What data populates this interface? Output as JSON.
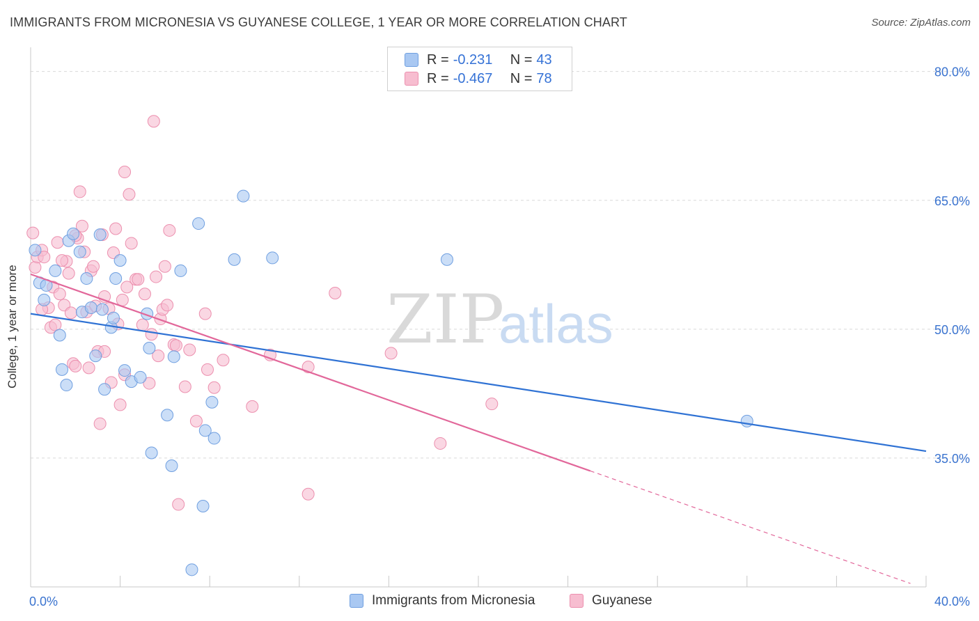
{
  "title": "IMMIGRANTS FROM MICRONESIA VS GUYANESE COLLEGE, 1 YEAR OR MORE CORRELATION CHART",
  "source": "Source: ZipAtlas.com",
  "watermark": {
    "zip": "ZIP",
    "atlas": "atlas"
  },
  "legend": [
    {
      "r_label": "R =",
      "r_value": "-0.231",
      "n_label": "N =",
      "n_value": "43"
    },
    {
      "r_label": "R =",
      "r_value": "-0.467",
      "n_label": "N =",
      "n_value": "78"
    }
  ],
  "colors": {
    "blue_fill": "#a9c8f2",
    "blue_stroke": "#6f9fe0",
    "blue_line": "#2f72d4",
    "pink_fill": "#f7bdd0",
    "pink_stroke": "#ec8fae",
    "pink_line": "#e2679a",
    "tick_text": "#3a73cf",
    "grid": "#d9d9d9"
  },
  "chart_data": {
    "type": "scatter",
    "title": "IMMIGRANTS FROM MICRONESIA VS GUYANESE COLLEGE, 1 YEAR OR MORE CORRELATION CHART",
    "xlabel": "",
    "ylabel": "College, 1 year or more",
    "xlim": [
      0,
      40
    ],
    "ylim": [
      20,
      82
    ],
    "x_tick_labels": [
      "0.0%",
      "40.0%"
    ],
    "y_ticks": [
      35,
      50,
      65,
      80
    ],
    "y_tick_labels": [
      "35.0%",
      "50.0%",
      "65.0%",
      "80.0%"
    ],
    "series": [
      {
        "name": "Immigrants from Micronesia",
        "color": "blue",
        "trend": {
          "x0": 0,
          "y0": 51.8,
          "x1": 40,
          "y1": 35.8,
          "dashed_from": null
        },
        "points": [
          [
            0.2,
            59.2
          ],
          [
            0.4,
            55.4
          ],
          [
            0.6,
            53.4
          ],
          [
            0.7,
            55.1
          ],
          [
            1.1,
            56.8
          ],
          [
            1.3,
            49.3
          ],
          [
            1.4,
            45.3
          ],
          [
            1.6,
            43.5
          ],
          [
            1.7,
            60.3
          ],
          [
            1.9,
            61.1
          ],
          [
            2.2,
            59.0
          ],
          [
            2.3,
            52.0
          ],
          [
            2.5,
            55.9
          ],
          [
            2.7,
            52.5
          ],
          [
            2.9,
            46.9
          ],
          [
            3.1,
            61.0
          ],
          [
            3.3,
            43.0
          ],
          [
            3.6,
            50.2
          ],
          [
            3.7,
            51.3
          ],
          [
            3.8,
            55.9
          ],
          [
            4.0,
            58.0
          ],
          [
            4.2,
            45.2
          ],
          [
            4.5,
            43.9
          ],
          [
            4.9,
            44.4
          ],
          [
            5.3,
            47.8
          ],
          [
            5.4,
            35.6
          ],
          [
            6.3,
            34.1
          ],
          [
            6.4,
            46.8
          ],
          [
            6.1,
            40.0
          ],
          [
            6.7,
            56.8
          ],
          [
            7.5,
            62.3
          ],
          [
            7.7,
            29.4
          ],
          [
            7.8,
            38.2
          ],
          [
            8.2,
            37.3
          ],
          [
            8.1,
            41.5
          ],
          [
            9.1,
            58.1
          ],
          [
            9.5,
            65.5
          ],
          [
            10.8,
            58.3
          ],
          [
            18.6,
            58.1
          ],
          [
            32.0,
            39.3
          ],
          [
            7.2,
            22.0
          ],
          [
            5.2,
            51.8
          ],
          [
            3.2,
            52.3
          ]
        ]
      },
      {
        "name": "Guyanese",
        "color": "pink",
        "trend": {
          "x0": 0,
          "y0": 56.4,
          "x1": 39.3,
          "y1": 20.4,
          "dashed_from": 25.0
        },
        "points": [
          [
            0.1,
            61.2
          ],
          [
            0.2,
            57.2
          ],
          [
            0.3,
            58.4
          ],
          [
            0.5,
            59.2
          ],
          [
            0.6,
            58.4
          ],
          [
            0.8,
            52.5
          ],
          [
            0.9,
            50.2
          ],
          [
            1.0,
            54.9
          ],
          [
            1.1,
            50.5
          ],
          [
            1.2,
            60.1
          ],
          [
            1.3,
            54.1
          ],
          [
            1.5,
            52.8
          ],
          [
            1.6,
            57.9
          ],
          [
            1.7,
            56.5
          ],
          [
            1.8,
            51.9
          ],
          [
            1.9,
            46.0
          ],
          [
            2.0,
            45.7
          ],
          [
            2.1,
            60.6
          ],
          [
            2.2,
            66.0
          ],
          [
            2.3,
            62.0
          ],
          [
            2.4,
            59.0
          ],
          [
            2.5,
            52.0
          ],
          [
            2.6,
            45.5
          ],
          [
            2.7,
            56.8
          ],
          [
            2.8,
            57.3
          ],
          [
            2.9,
            52.7
          ],
          [
            3.0,
            47.4
          ],
          [
            3.1,
            39.0
          ],
          [
            3.2,
            61.0
          ],
          [
            3.3,
            53.8
          ],
          [
            3.5,
            52.4
          ],
          [
            3.6,
            43.8
          ],
          [
            3.7,
            58.9
          ],
          [
            3.8,
            61.7
          ],
          [
            3.9,
            50.6
          ],
          [
            4.0,
            41.2
          ],
          [
            4.1,
            53.4
          ],
          [
            4.2,
            44.7
          ],
          [
            4.3,
            54.9
          ],
          [
            4.4,
            65.7
          ],
          [
            4.5,
            60.0
          ],
          [
            4.7,
            55.8
          ],
          [
            4.8,
            55.8
          ],
          [
            5.0,
            50.5
          ],
          [
            5.1,
            54.1
          ],
          [
            5.3,
            43.7
          ],
          [
            5.4,
            49.4
          ],
          [
            5.5,
            74.2
          ],
          [
            5.7,
            46.9
          ],
          [
            5.8,
            51.2
          ],
          [
            5.9,
            52.3
          ],
          [
            6.0,
            57.3
          ],
          [
            6.1,
            52.8
          ],
          [
            6.2,
            61.5
          ],
          [
            6.4,
            48.2
          ],
          [
            6.5,
            48.1
          ],
          [
            6.6,
            29.6
          ],
          [
            6.9,
            43.3
          ],
          [
            7.1,
            47.6
          ],
          [
            7.4,
            39.3
          ],
          [
            7.8,
            51.8
          ],
          [
            7.9,
            45.3
          ],
          [
            8.2,
            43.2
          ],
          [
            8.6,
            46.4
          ],
          [
            9.9,
            41.0
          ],
          [
            10.7,
            47.0
          ],
          [
            12.4,
            45.6
          ],
          [
            13.6,
            54.2
          ],
          [
            16.1,
            47.2
          ],
          [
            18.3,
            36.7
          ],
          [
            20.6,
            41.3
          ],
          [
            12.4,
            30.8
          ],
          [
            4.2,
            68.3
          ],
          [
            1.4,
            58.0
          ],
          [
            2.0,
            60.9
          ],
          [
            0.5,
            52.3
          ],
          [
            3.3,
            47.4
          ],
          [
            5.6,
            56.1
          ]
        ]
      }
    ]
  },
  "bottom_legend": [
    {
      "label": "Immigrants from Micronesia"
    },
    {
      "label": "Guyanese"
    }
  ]
}
